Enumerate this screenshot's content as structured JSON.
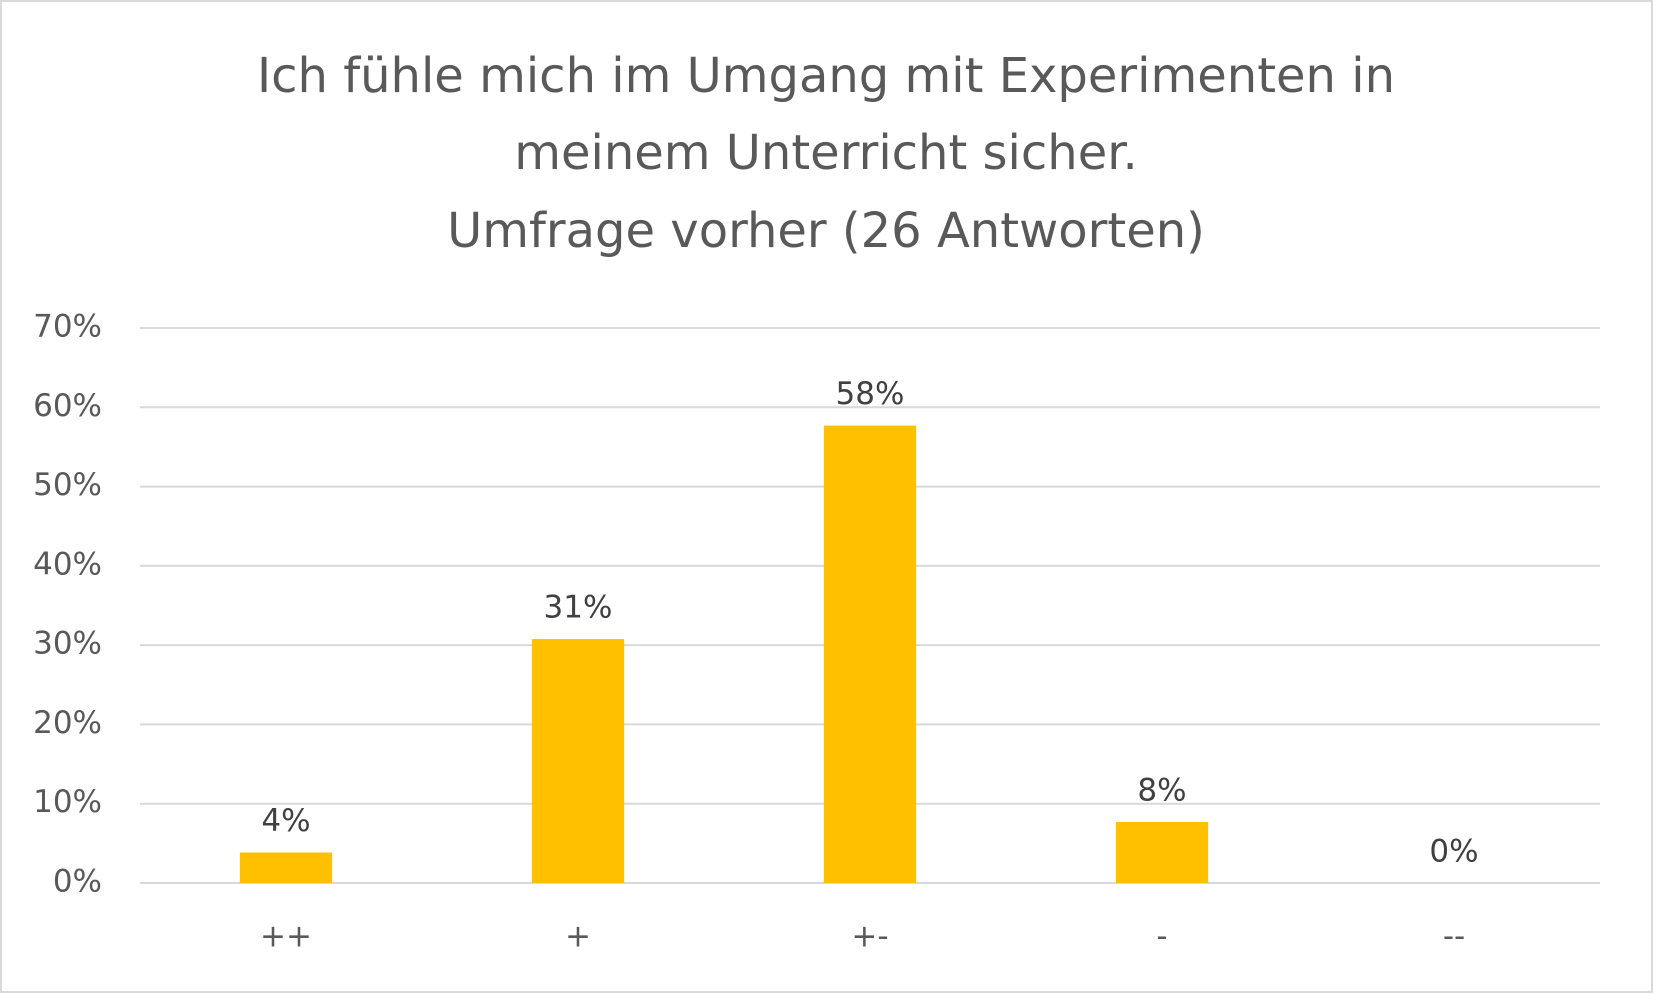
{
  "chart_data": {
    "type": "bar",
    "title": [
      "Ich fühle mich im Umgang mit Experimenten in",
      "meinem Unterricht sicher."
    ],
    "subtitle": "Umfrage vorher (26 Antworten)",
    "categories": [
      "++",
      "+",
      "+-",
      "-",
      "--"
    ],
    "values": [
      3.85,
      30.77,
      57.69,
      7.69,
      0
    ],
    "value_labels": [
      "4%",
      "31%",
      "58%",
      "8%",
      "0%"
    ],
    "color": "#ffc000",
    "ylim": [
      0,
      70
    ],
    "yticks": [
      {
        "value": 0,
        "label": "0%"
      },
      {
        "value": 10,
        "label": "10%"
      },
      {
        "value": 20,
        "label": "20%"
      },
      {
        "value": 30,
        "label": "30%"
      },
      {
        "value": 40,
        "label": "40%"
      },
      {
        "value": 50,
        "label": "50%"
      },
      {
        "value": 60,
        "label": "60%"
      },
      {
        "value": 70,
        "label": "70%"
      }
    ],
    "grid": true
  }
}
